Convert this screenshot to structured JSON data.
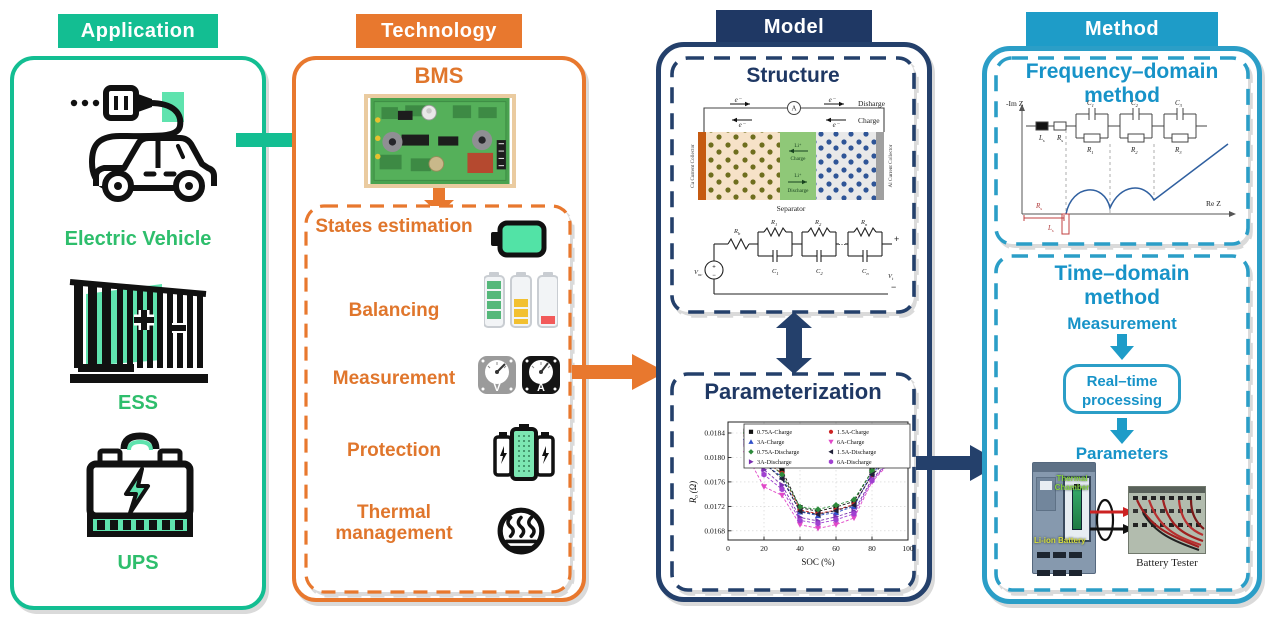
{
  "palette": {
    "teal": "#13BE92",
    "green_text": "#2EBE6C",
    "orange": "#E8782E",
    "navy": "#1F3864",
    "cyan": "#1E9CC8"
  },
  "application": {
    "header": "Application",
    "items": [
      {
        "label": "Electric Vehicle"
      },
      {
        "label": "ESS"
      },
      {
        "label": "UPS"
      }
    ]
  },
  "technology": {
    "header": "Technology",
    "bms": "BMS",
    "functions": [
      {
        "label": "States estimation"
      },
      {
        "label": "Balancing"
      },
      {
        "label": "Measurement"
      },
      {
        "label": "Protection"
      },
      {
        "label": "Thermal management"
      }
    ],
    "gauge_v": "V",
    "gauge_a": "A"
  },
  "model": {
    "header": "Model",
    "structure": {
      "title": "Structure",
      "cell": {
        "cu_collector": "Cu Current Collector",
        "al_collector": "Al Current Collector",
        "separator": "Separator",
        "discharge": "Disharge",
        "charge": "Charge",
        "electron": "e⁻",
        "ammeter": "A",
        "li_ion": "Li⁺",
        "li_charge": "Charge",
        "li_discharge": "Discharge"
      },
      "circuit": {
        "voc_base": "V",
        "voc_sub": "oc",
        "rb_base": "R",
        "rb_sub": "b",
        "r1_base": "R",
        "r1_sub": "1",
        "r2_base": "R",
        "r2_sub": "2",
        "rn_base": "R",
        "rn_sub": "n",
        "c1_base": "C",
        "c1_sub": "1",
        "c2_base": "C",
        "c2_sub": "2",
        "cn_base": "C",
        "cn_sub": "n",
        "vt_base": "V",
        "vt_sub": "t",
        "plus": "+",
        "minus": "−",
        "dots": "⋯"
      }
    },
    "parameterization": {
      "title": "Parameterization"
    }
  },
  "method": {
    "header": "Method",
    "frequency": {
      "title_line1": "Frequency–domain",
      "title_line2": "method",
      "nyquist": {
        "y_axis": "-Im Z",
        "x_axis": "Re Z",
        "ls_base": "L",
        "ls_sub": "s",
        "rs_base": "R",
        "rs_sub": "s",
        "c1_base": "C",
        "c1_sub": "1",
        "c2_base": "C",
        "c2_sub": "2",
        "c3_base": "C",
        "c3_sub": "3",
        "r1_base": "R",
        "r1_sub": "1",
        "r2_base": "R",
        "r2_sub": "2",
        "r3_base": "R",
        "r3_sub": "3"
      }
    },
    "time": {
      "title_line1": "Time–domain",
      "title_line2": "method",
      "step_measurement": "Measurement",
      "step_processing": "Real–time processing",
      "step_parameters": "Parameters",
      "label_thermal_chamber": "Thermal Chamber",
      "label_liion": "Li-ion Battery",
      "label_tester": "Battery Tester"
    }
  },
  "chart_data": {
    "type": "line",
    "title": "",
    "xlabel": "SOC (%)",
    "ylabel": "R0 (Ω)",
    "ylabel_parts": {
      "base": "R",
      "sub": "0",
      "unit": "(Ω)"
    },
    "xlim": [
      0,
      100
    ],
    "ylim": [
      0.01665,
      0.01858
    ],
    "xticks": [
      0,
      20,
      40,
      60,
      80,
      100
    ],
    "yticks": [
      0.0168,
      0.0172,
      0.0176,
      0.018,
      0.0184
    ],
    "grid": true,
    "legend_position": "top",
    "x": [
      10,
      20,
      30,
      40,
      50,
      60,
      70,
      80,
      90
    ],
    "series": [
      {
        "name": "0.75A-Charge",
        "marker": "square",
        "color": "#111111",
        "values": [
          0.01843,
          0.018,
          0.01779,
          0.01718,
          0.01712,
          0.01719,
          0.01728,
          0.01778,
          0.01808
        ]
      },
      {
        "name": "1.5A-Charge",
        "marker": "circle",
        "color": "#CC2222",
        "values": [
          0.01838,
          0.01795,
          0.01774,
          0.01714,
          0.01708,
          0.01714,
          0.01723,
          0.01772,
          0.01812
        ]
      },
      {
        "name": "3A-Charge",
        "marker": "triangle-up",
        "color": "#3050C8",
        "values": [
          0.01833,
          0.0179,
          0.01768,
          0.01711,
          0.01705,
          0.0171,
          0.0172,
          0.01775,
          0.018
        ]
      },
      {
        "name": "6A-Charge",
        "marker": "triangle-down",
        "color": "#E048C8",
        "values": [
          0.01806,
          0.01752,
          0.01738,
          0.0169,
          0.01684,
          0.0169,
          0.01701,
          0.0176,
          0.01792
        ]
      },
      {
        "name": "0.75A-Discharge",
        "marker": "diamond",
        "color": "#2E8B3C",
        "values": [
          0.0184,
          0.01798,
          0.01772,
          0.01719,
          0.01715,
          0.01722,
          0.01731,
          0.01778,
          0.01801
        ]
      },
      {
        "name": "1.5A-Discharge",
        "marker": "triangle-left",
        "color": "#202038",
        "values": [
          0.01835,
          0.01791,
          0.01765,
          0.01712,
          0.01707,
          0.01713,
          0.01722,
          0.01772,
          0.01798
        ]
      },
      {
        "name": "3A-Discharge",
        "marker": "triangle-right",
        "color": "#7A30B0",
        "values": [
          0.01825,
          0.0178,
          0.01755,
          0.01702,
          0.01696,
          0.01703,
          0.01712,
          0.01765,
          0.01795
        ]
      },
      {
        "name": "6A-Discharge",
        "marker": "hexagon",
        "color": "#A040D0",
        "values": [
          0.0182,
          0.01772,
          0.01748,
          0.01697,
          0.01692,
          0.01698,
          0.01708,
          0.01762,
          0.01794
        ]
      }
    ]
  }
}
